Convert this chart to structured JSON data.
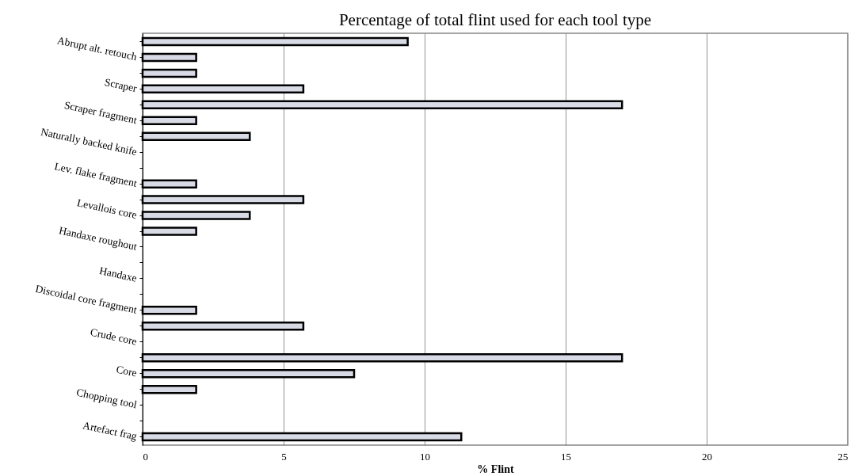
{
  "chart_data": {
    "type": "bar",
    "orientation": "horizontal",
    "title": "Percentage of total flint used for each tool type",
    "xlabel": "% Flint",
    "categories": [
      null,
      "Abrupt alt. retouch",
      null,
      "Scraper",
      null,
      "Scraper fragment",
      null,
      "Naturally backed knife",
      null,
      "Lev. flake fragment",
      null,
      "Levallois core",
      null,
      "Handaxe roughout",
      null,
      "Handaxe",
      null,
      "Discoidal core fragment",
      null,
      "Crude core",
      null,
      "Core",
      null,
      "Chopping tool",
      null,
      "Artefact frag"
    ],
    "values": [
      9.4,
      1.9,
      1.9,
      5.7,
      17.0,
      1.9,
      3.8,
      0,
      0,
      1.9,
      5.7,
      3.8,
      1.9,
      0,
      0,
      0,
      0,
      1.9,
      5.7,
      0,
      17.0,
      7.5,
      1.9,
      0,
      0,
      11.3
    ],
    "color": "#d8dbe6",
    "xlim": [
      0,
      25
    ],
    "xticks": [
      0,
      5,
      10,
      15,
      20,
      25
    ],
    "grid": "x"
  }
}
